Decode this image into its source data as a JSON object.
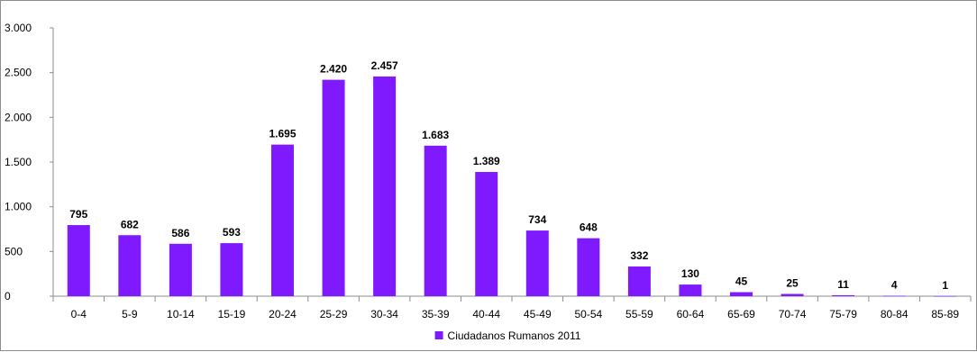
{
  "chart_data": {
    "type": "bar",
    "categories": [
      "0-4",
      "5-9",
      "10-14",
      "15-19",
      "20-24",
      "25-29",
      "30-34",
      "35-39",
      "40-44",
      "45-49",
      "50-54",
      "55-59",
      "60-64",
      "65-69",
      "70-74",
      "75-79",
      "80-84",
      "85-89"
    ],
    "series": [
      {
        "name": "Ciudadanos Rumanos 2011",
        "values": [
          795,
          682,
          586,
          593,
          1695,
          2420,
          2457,
          1683,
          1389,
          734,
          648,
          332,
          130,
          45,
          25,
          11,
          4,
          1
        ],
        "value_labels": [
          "795",
          "682",
          "586",
          "593",
          "1.695",
          "2.420",
          "2.457",
          "1.683",
          "1.389",
          "734",
          "648",
          "332",
          "130",
          "45",
          "25",
          "11",
          "4",
          "1"
        ],
        "color": "#7f1aff"
      }
    ],
    "ylim": [
      0,
      3000
    ],
    "yticks": [
      0,
      500,
      1000,
      1500,
      2000,
      2500,
      3000
    ],
    "ytick_labels": [
      "0",
      "500",
      "1.000",
      "1.500",
      "2.000",
      "2.500",
      "3.000"
    ],
    "grid": false,
    "legend_position": "bottom-center",
    "title": "",
    "xlabel": "",
    "ylabel": ""
  }
}
